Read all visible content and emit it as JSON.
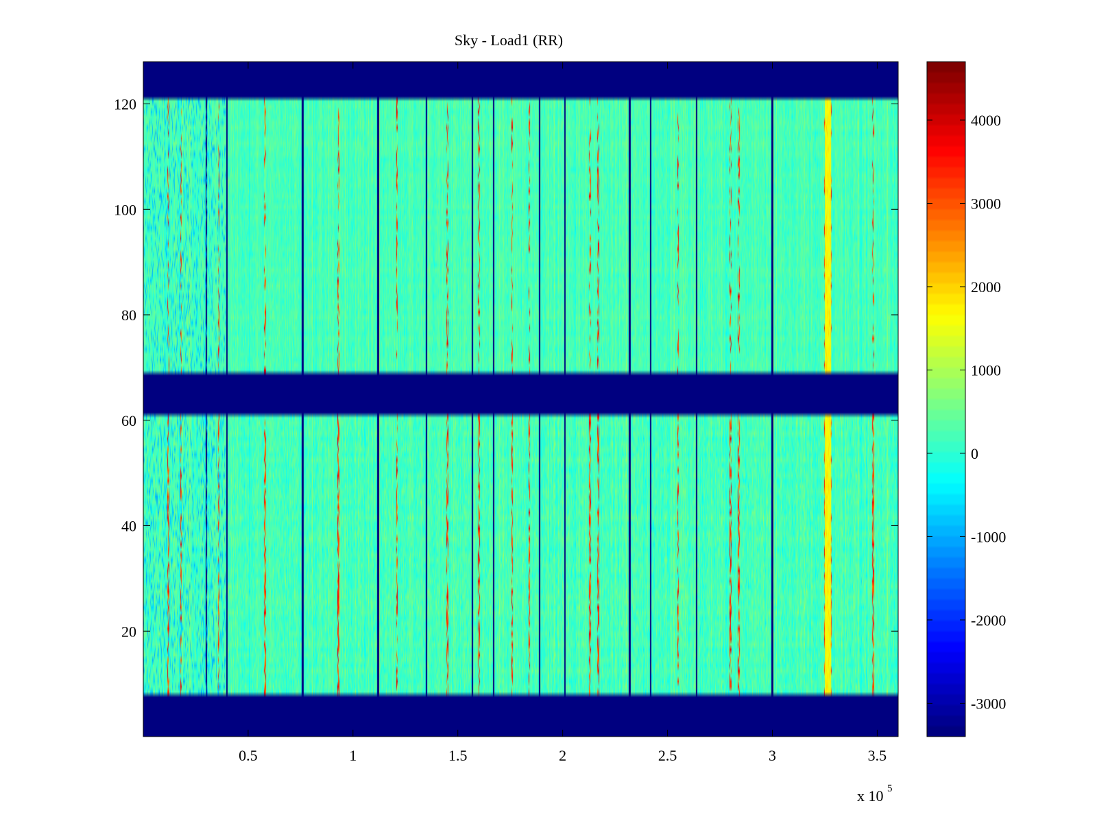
{
  "chart_data": {
    "type": "heatmap",
    "title": "Sky - Load1 (RR)",
    "xlabel": "",
    "ylabel": "",
    "x_multiplier_label": {
      "base": "x 10",
      "exponent": "5"
    },
    "xlim": [
      0,
      3.6
    ],
    "ylim": [
      0,
      128
    ],
    "x_ticks": [
      0.5,
      1,
      1.5,
      2,
      2.5,
      3,
      3.5
    ],
    "x_tick_labels": [
      "0.5",
      "1",
      "1.5",
      "2",
      "2.5",
      "3",
      "3.5"
    ],
    "y_ticks": [
      20,
      40,
      60,
      80,
      100,
      120
    ],
    "y_tick_labels": [
      "20",
      "40",
      "60",
      "80",
      "100",
      "120"
    ],
    "colormap": "jet",
    "clim": [
      -3400,
      4700
    ],
    "colorbar": {
      "ticks": [
        -3000,
        -2000,
        -1000,
        0,
        1000,
        2000,
        3000,
        4000
      ],
      "tick_labels": [
        "-3000",
        "-2000",
        "-1000",
        "0",
        "1000",
        "2000",
        "3000",
        "4000"
      ]
    },
    "masked_row_bands": [
      [
        0,
        7.5
      ],
      [
        61.5,
        68.5
      ],
      [
        121.5,
        128
      ]
    ],
    "masked_value": -3400,
    "background_value": 200,
    "bright_stripe_x_range": [
      3.25,
      3.28
    ],
    "dark_column_x": [
      0.3,
      0.4,
      0.76,
      1.12,
      1.35,
      1.57,
      1.67,
      1.89,
      2.01,
      2.32,
      2.42,
      2.64,
      3.0
    ],
    "hot_column_x": [
      0.12,
      0.18,
      0.36,
      0.58,
      0.93,
      1.21,
      1.45,
      1.6,
      1.76,
      1.84,
      2.13,
      2.17,
      2.55,
      2.8,
      2.84,
      3.25,
      3.28,
      3.48
    ]
  }
}
